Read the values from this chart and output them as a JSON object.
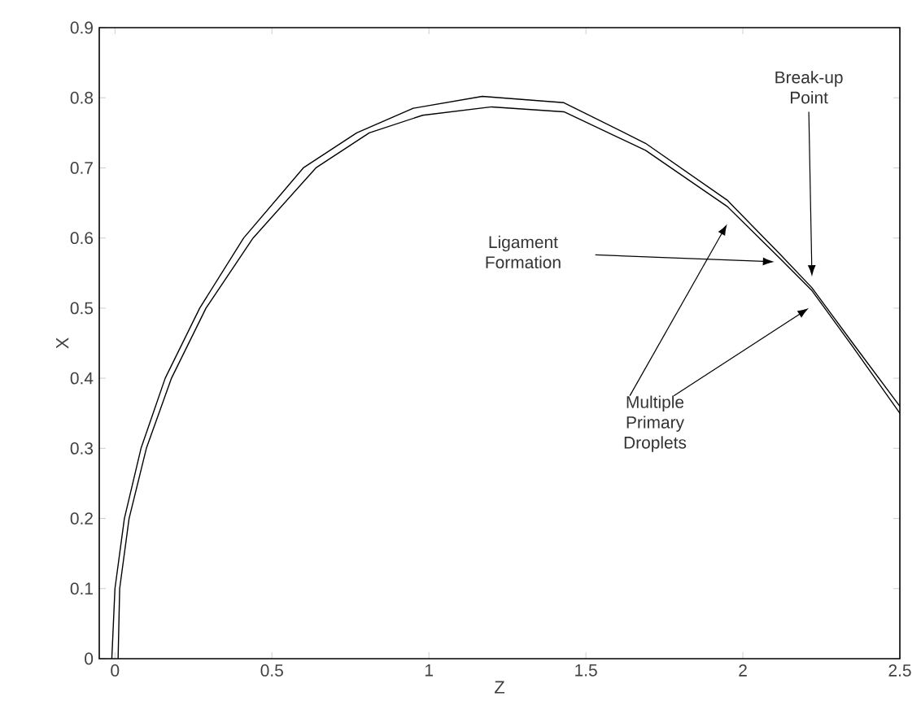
{
  "chart_data": {
    "type": "line",
    "xlabel": "Z",
    "ylabel": "X",
    "xlim": [
      -0.05,
      2.5
    ],
    "ylim": [
      0,
      0.9
    ],
    "xticks": [
      0,
      0.5,
      1,
      1.5,
      2,
      2.5
    ],
    "yticks": [
      0,
      0.1,
      0.2,
      0.3,
      0.4,
      0.5,
      0.6,
      0.7,
      0.8,
      0.9
    ],
    "grid": false,
    "marker": "none",
    "line_style": "solid",
    "series": [
      {
        "color": "#000000",
        "x": [
          -0.01,
          0.0,
          0.03,
          0.083,
          0.16,
          0.27,
          0.41,
          0.6,
          0.77,
          0.95,
          1.17,
          1.43,
          1.69,
          1.95,
          2.12,
          2.22,
          2.35,
          2.5
        ],
        "values": [
          0,
          0.1,
          0.2,
          0.3,
          0.4,
          0.5,
          0.6,
          0.7,
          0.75,
          0.785,
          0.802,
          0.793,
          0.735,
          0.654,
          0.576,
          0.529,
          0.45,
          0.36
        ]
      },
      {
        "color": "#000000",
        "x": [
          0.01,
          0.015,
          0.045,
          0.1,
          0.18,
          0.29,
          0.44,
          0.64,
          0.81,
          0.98,
          1.2,
          1.43,
          1.69,
          1.95,
          2.12,
          2.22,
          2.35,
          2.5
        ],
        "values": [
          0,
          0.1,
          0.2,
          0.3,
          0.4,
          0.5,
          0.6,
          0.7,
          0.75,
          0.775,
          0.787,
          0.78,
          0.725,
          0.645,
          0.57,
          0.525,
          0.445,
          0.35
        ]
      }
    ],
    "annotations": [
      "Ligament Formation",
      "Break-up Point",
      "Multiple Primary Droplets"
    ]
  }
}
